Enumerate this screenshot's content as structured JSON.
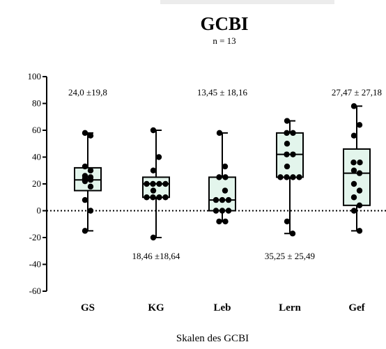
{
  "chart_data": {
    "type": "box",
    "title": "GCBI",
    "subtitle": "n = 13",
    "xlabel": "Skalen des GCBI",
    "ylabel": "",
    "ylim": [
      -60,
      100
    ],
    "yticks": [
      100,
      80,
      60,
      40,
      20,
      0,
      -20,
      -40,
      -60
    ],
    "ytick_labels": [
      "100",
      "80",
      "60",
      "40",
      "20",
      "0",
      "-20",
      "-40",
      "-60"
    ],
    "reference_line": 0,
    "box_fill": "#e3f5ec",
    "categories": [
      "GS",
      "KG",
      "Leb",
      "Lern",
      "Gef"
    ],
    "boxes": [
      {
        "min": -15,
        "q1": 15,
        "median": 23,
        "q3": 32,
        "max": 58
      },
      {
        "min": -20,
        "q1": 10,
        "median": 20,
        "q3": 25,
        "max": 60
      },
      {
        "min": -8,
        "q1": 0,
        "median": 8,
        "q3": 25,
        "max": 58
      },
      {
        "min": -17,
        "q1": 25,
        "median": 42,
        "q3": 58,
        "max": 67
      },
      {
        "min": -15,
        "q1": 4,
        "median": 28,
        "q3": 46,
        "max": 78
      }
    ],
    "points": [
      [
        58,
        56,
        33,
        30,
        26,
        25,
        24,
        23,
        22,
        18,
        8,
        0,
        -15
      ],
      [
        60,
        40,
        30,
        20,
        20,
        20,
        20,
        15,
        10,
        10,
        10,
        10,
        -20
      ],
      [
        58,
        33,
        25,
        25,
        15,
        8,
        8,
        8,
        0,
        0,
        0,
        -8,
        -8
      ],
      [
        67,
        58,
        58,
        50,
        42,
        42,
        33,
        25,
        25,
        25,
        25,
        -8,
        -17
      ],
      [
        78,
        64,
        56,
        36,
        36,
        30,
        28,
        20,
        15,
        10,
        4,
        0,
        -15
      ]
    ],
    "annotations": [
      {
        "text": "24,0 ±19,8",
        "category": 0,
        "y": 88
      },
      {
        "text": "18,46 ±18,64",
        "category": 1,
        "y": -34
      },
      {
        "text": "13,45 ± 18,16",
        "category": 2,
        "y": 88
      },
      {
        "text": "35,25 ± 25,49",
        "category": 3,
        "y": -34
      },
      {
        "text": "27,47 ± 27,18",
        "category": 4,
        "y": 88
      }
    ]
  }
}
